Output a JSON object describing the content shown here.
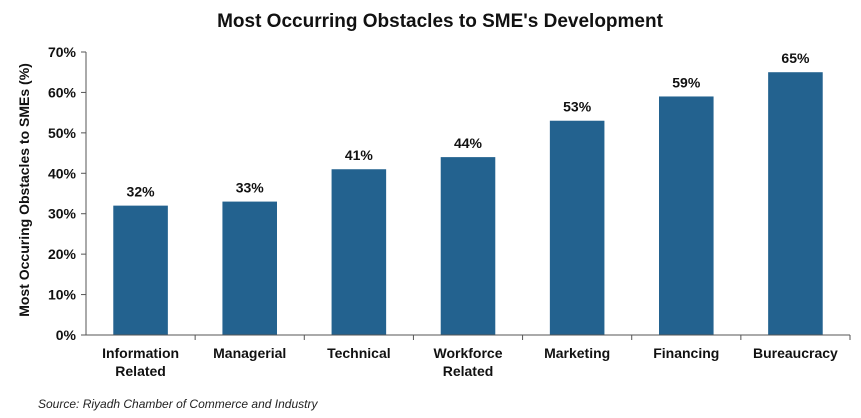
{
  "chart_data": {
    "type": "bar",
    "title": "Most Occurring Obstacles to SME's Development",
    "ylabel": "Most Occuring Obstacles to SMEs (%)",
    "xlabel": "",
    "categories": [
      [
        "Information",
        "Related"
      ],
      [
        "Managerial"
      ],
      [
        "Technical"
      ],
      [
        "Workforce",
        "Related"
      ],
      [
        "Marketing"
      ],
      [
        "Financing"
      ],
      [
        "Bureaucracy"
      ]
    ],
    "values": [
      32,
      33,
      41,
      44,
      53,
      59,
      65
    ],
    "value_labels": [
      "32%",
      "33%",
      "41%",
      "44%",
      "53%",
      "59%",
      "65%"
    ],
    "ylim": [
      0,
      70
    ],
    "yticks": [
      0,
      10,
      20,
      30,
      40,
      50,
      60,
      70
    ],
    "ytick_labels": [
      "0%",
      "10%",
      "20%",
      "30%",
      "40%",
      "50%",
      "60%",
      "70%"
    ],
    "grid": false,
    "legend": "none",
    "bar_color": "#23628f",
    "source": "Source: Riyadh Chamber of Commerce and Industry"
  }
}
